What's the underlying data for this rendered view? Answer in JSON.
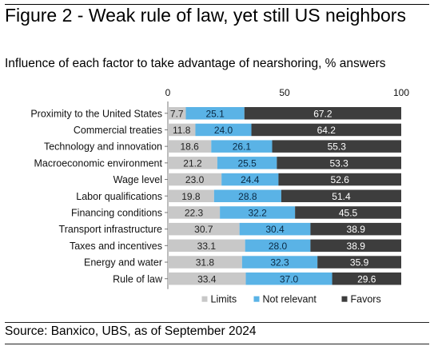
{
  "title": "Figure 2 - Weak rule of law, yet still US neighbors",
  "subtitle": "Influence of each factor to take advantage of nearshoring, % answers",
  "source": "Source: Banxico, UBS, as of September 2024",
  "colors": {
    "limits": "#c8c8c8",
    "not_relevant": "#5ab3e6",
    "favors": "#3d3d3d"
  },
  "chart_data": {
    "type": "bar",
    "orientation": "horizontal",
    "stacked": true,
    "categories": [
      "Proximity to the United States",
      "Commercial treaties",
      "Technology and innovation",
      "Macroeconomic environment",
      "Wage level",
      "Labor qualifications",
      "Financing conditions",
      "Transport infrastructure",
      "Taxes and incentives",
      "Energy and water",
      "Rule of law"
    ],
    "series": [
      {
        "name": "Limits",
        "values": [
          7.7,
          11.8,
          18.6,
          21.2,
          23.0,
          19.8,
          22.3,
          30.7,
          33.1,
          31.8,
          33.4
        ]
      },
      {
        "name": "Not relevant",
        "values": [
          25.1,
          24.0,
          26.1,
          25.5,
          24.4,
          28.8,
          32.2,
          30.4,
          28.0,
          32.3,
          37.0
        ]
      },
      {
        "name": "Favors",
        "values": [
          67.2,
          64.2,
          55.3,
          53.3,
          52.6,
          51.4,
          45.5,
          38.9,
          38.9,
          35.9,
          29.6
        ]
      }
    ],
    "xlim": [
      0,
      100
    ],
    "xticks": [
      "0",
      "50",
      "100"
    ],
    "grid": false,
    "legend_position": "bottom"
  }
}
